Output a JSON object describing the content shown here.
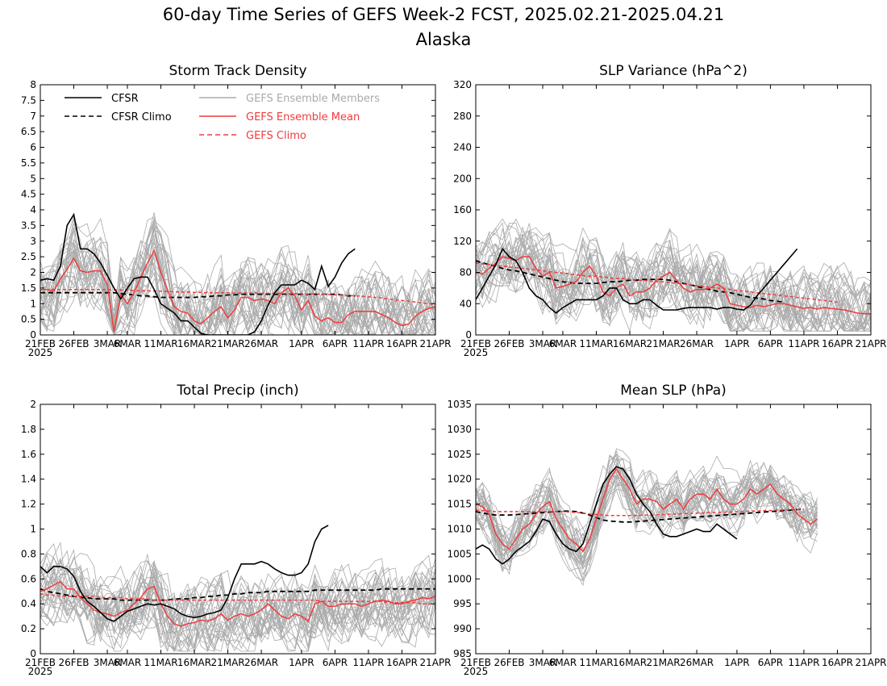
{
  "title": "60-day Time Series of GEFS Week-2 FCST, 2025.02.21-2025.04.21",
  "subtitle": "Alaska",
  "legend": [
    {
      "label": "CFSR",
      "color": "#000000",
      "dash": false
    },
    {
      "label": "CFSR Climo",
      "color": "#000000",
      "dash": true
    },
    {
      "label": "GEFS Ensemble Members",
      "color": "#aaaaaa",
      "dash": false
    },
    {
      "label": "GEFS Ensemble Mean",
      "color": "#f03c3c",
      "dash": false
    },
    {
      "label": "GEFS Climo",
      "color": "#f03c3c",
      "dash": true
    }
  ],
  "x_ticks": [
    "21FEB",
    "26FEB",
    "3MAR",
    "6MAR",
    "11MAR",
    "16MAR",
    "21MAR",
    "26MAR",
    "1APR",
    "6APR",
    "11APR",
    "16APR",
    "21APR"
  ],
  "x_tick_dates": [
    "2025-02-21",
    "2025-02-26",
    "2025-03-03",
    "2025-03-06",
    "2025-03-11",
    "2025-03-16",
    "2025-03-21",
    "2025-03-26",
    "2025-04-01",
    "2025-04-06",
    "2025-04-11",
    "2025-04-16",
    "2025-04-21"
  ],
  "x_year_label": "2025",
  "chart_data": [
    {
      "type": "line",
      "title": "Storm Track Density",
      "ylim": [
        0,
        8
      ],
      "yticks": [
        "0",
        "0.5",
        "1",
        "1.5",
        "2",
        "2.5",
        "3",
        "3.5",
        "4",
        "4.5",
        "5",
        "5.5",
        "6",
        "6.5",
        "7",
        "7.5",
        "8"
      ],
      "x_range": [
        "2025-02-21",
        "2025-04-21"
      ],
      "series": [
        {
          "name": "CFSR",
          "start": "2025-02-21",
          "values": [
            1.75,
            1.8,
            1.75,
            2.2,
            3.5,
            3.85,
            2.75,
            2.75,
            2.6,
            2.3,
            1.9,
            1.5,
            1.15,
            1.5,
            1.8,
            1.85,
            1.85,
            1.45,
            1.0,
            0.85,
            0.7,
            0.45,
            0.45,
            0.25,
            0.05,
            0.0,
            0.0,
            0.0,
            0.0,
            0.0,
            0.0,
            0.0,
            0.1,
            0.45,
            0.95,
            1.35,
            1.6,
            1.6,
            1.6,
            1.75,
            1.65,
            1.45,
            2.2,
            1.55,
            1.85,
            2.3,
            2.6,
            2.75
          ]
        },
        {
          "name": "CFSR Climo",
          "start": "2025-02-21",
          "values": [
            1.35,
            1.35,
            1.35,
            1.35,
            1.35,
            1.35,
            1.35,
            1.35,
            1.35,
            1.35,
            1.35,
            1.35,
            1.32,
            1.3,
            1.28,
            1.25,
            1.25,
            1.22,
            1.2,
            1.2,
            1.2,
            1.2,
            1.2,
            1.2,
            1.22,
            1.22,
            1.25,
            1.25,
            1.28,
            1.28,
            1.3,
            1.3,
            1.3,
            1.3,
            1.3,
            1.3,
            1.3,
            1.3,
            1.3,
            1.3,
            1.3,
            1.3,
            1.3,
            1.3,
            1.3,
            1.28,
            1.25,
            1.25
          ]
        },
        {
          "name": "GEFS Ensemble Mean",
          "start": "2025-02-21",
          "values": [
            1.45,
            1.45,
            1.4,
            1.8,
            2.1,
            2.45,
            2.05,
            2.0,
            2.05,
            2.05,
            1.6,
            0.1,
            1.3,
            1.0,
            1.35,
            1.85,
            2.3,
            2.7,
            2.0,
            1.45,
            0.9,
            0.75,
            0.7,
            0.45,
            0.35,
            0.55,
            0.75,
            0.9,
            0.55,
            0.8,
            1.2,
            1.2,
            1.1,
            1.15,
            1.1,
            1.0,
            1.35,
            1.5,
            1.25,
            0.8,
            1.1,
            0.6,
            0.45,
            0.55,
            0.4,
            0.4,
            0.65,
            0.75,
            0.75,
            0.75,
            0.75,
            0.65,
            0.55,
            0.4,
            0.3,
            0.35,
            0.6,
            0.75,
            0.85,
            0.9,
            0.95,
            1.1,
            0.85
          ]
        },
        {
          "name": "GEFS Climo",
          "start": "2025-02-21",
          "values": [
            1.45,
            1.45,
            1.45,
            1.45,
            1.45,
            1.45,
            1.45,
            1.45,
            1.45,
            1.45,
            1.45,
            1.44,
            1.44,
            1.43,
            1.42,
            1.42,
            1.41,
            1.4,
            1.4,
            1.39,
            1.38,
            1.37,
            1.37,
            1.36,
            1.36,
            1.35,
            1.35,
            1.35,
            1.35,
            1.34,
            1.34,
            1.34,
            1.34,
            1.33,
            1.33,
            1.33,
            1.33,
            1.32,
            1.32,
            1.32,
            1.31,
            1.31,
            1.3,
            1.29,
            1.28,
            1.27,
            1.26,
            1.25,
            1.24,
            1.22,
            1.2,
            1.18,
            1.15,
            1.12,
            1.1,
            1.08,
            1.05,
            1.02,
            1.0,
            0.98,
            0.95
          ]
        }
      ],
      "ensemble": {
        "members": 30,
        "spread": 1.1,
        "min": 0
      }
    },
    {
      "type": "line",
      "title": "SLP Variance (hPa^2)",
      "ylim": [
        0,
        320
      ],
      "yticks": [
        "0",
        "40",
        "80",
        "120",
        "160",
        "200",
        "240",
        "280",
        "320"
      ],
      "x_range": [
        "2025-02-21",
        "2025-04-21"
      ],
      "series": [
        {
          "name": "CFSR",
          "start": "2025-02-21",
          "values": [
            45,
            60,
            75,
            90,
            110,
            100,
            95,
            80,
            60,
            50,
            45,
            35,
            28,
            35,
            40,
            45,
            45,
            45,
            45,
            50,
            60,
            60,
            45,
            40,
            40,
            45,
            45,
            38,
            32,
            32,
            32,
            34,
            35,
            35,
            35,
            35,
            33,
            35,
            35,
            33,
            32,
            38,
            50,
            60,
            70,
            80,
            90,
            100,
            110
          ]
        },
        {
          "name": "CFSR Climo",
          "start": "2025-02-21",
          "values": [
            95,
            92,
            90,
            88,
            85,
            83,
            82,
            80,
            78,
            76,
            74,
            72,
            70,
            68,
            67,
            66,
            66,
            66,
            66,
            67,
            68,
            68,
            69,
            70,
            70,
            71,
            71,
            71,
            71,
            70,
            68,
            66,
            64,
            62,
            60,
            58,
            56,
            55,
            54,
            52,
            50,
            48,
            47,
            46,
            44,
            43,
            42
          ]
        },
        {
          "name": "GEFS Ensemble Mean",
          "start": "2025-02-21",
          "values": [
            80,
            78,
            85,
            92,
            100,
            98,
            95,
            100,
            100,
            85,
            75,
            80,
            60,
            62,
            65,
            68,
            80,
            88,
            75,
            55,
            50,
            60,
            65,
            50,
            55,
            55,
            60,
            70,
            75,
            80,
            70,
            60,
            55,
            58,
            58,
            60,
            65,
            60,
            40,
            38,
            36,
            35,
            38,
            36,
            38,
            40,
            40,
            38,
            36,
            34,
            35,
            33,
            35,
            34,
            33,
            32,
            30,
            28,
            27,
            27
          ]
        },
        {
          "name": "GEFS Climo",
          "start": "2025-02-21",
          "values": [
            92,
            91,
            90,
            89,
            88,
            87,
            86,
            85,
            84,
            83,
            82,
            81,
            80,
            79,
            78,
            77,
            76,
            75,
            75,
            74,
            73,
            72,
            72,
            71,
            70,
            70,
            69,
            68,
            68,
            67,
            66,
            65,
            64,
            63,
            62,
            61,
            60,
            59,
            58,
            57,
            56,
            55,
            54,
            53,
            52,
            51,
            50,
            49,
            48,
            47,
            46,
            45,
            44,
            43,
            42
          ]
        }
      ],
      "ensemble": {
        "members": 30,
        "spread": 40,
        "min": 5
      }
    },
    {
      "type": "line",
      "title": "Total Precip (inch)",
      "ylim": [
        0,
        2
      ],
      "yticks": [
        "0",
        "0.2",
        "0.4",
        "0.6",
        "0.8",
        "1",
        "1.2",
        "1.4",
        "1.6",
        "1.8",
        "2"
      ],
      "x_range": [
        "2025-02-21",
        "2025-04-21"
      ],
      "series": [
        {
          "name": "CFSR",
          "start": "2025-02-21",
          "values": [
            0.7,
            0.65,
            0.7,
            0.7,
            0.68,
            0.62,
            0.5,
            0.42,
            0.38,
            0.33,
            0.28,
            0.26,
            0.3,
            0.34,
            0.36,
            0.38,
            0.4,
            0.39,
            0.4,
            0.38,
            0.36,
            0.32,
            0.3,
            0.29,
            0.3,
            0.32,
            0.33,
            0.35,
            0.45,
            0.6,
            0.72,
            0.72,
            0.72,
            0.74,
            0.72,
            0.68,
            0.65,
            0.63,
            0.63,
            0.65,
            0.72,
            0.9,
            1.0,
            1.03
          ]
        },
        {
          "name": "CFSR Climo",
          "start": "2025-02-21",
          "values": [
            0.52,
            0.5,
            0.49,
            0.48,
            0.47,
            0.46,
            0.45,
            0.45,
            0.44,
            0.44,
            0.44,
            0.44,
            0.43,
            0.43,
            0.43,
            0.43,
            0.43,
            0.43,
            0.43,
            0.43,
            0.44,
            0.44,
            0.44,
            0.45,
            0.45,
            0.46,
            0.46,
            0.47,
            0.47,
            0.48,
            0.48,
            0.49,
            0.49,
            0.49,
            0.5,
            0.5,
            0.5,
            0.5,
            0.5,
            0.5,
            0.5,
            0.51,
            0.51,
            0.51,
            0.51,
            0.51,
            0.51,
            0.51,
            0.51,
            0.51,
            0.51,
            0.52,
            0.52,
            0.52,
            0.52,
            0.52,
            0.52,
            0.52,
            0.52,
            0.52
          ]
        },
        {
          "name": "GEFS Ensemble Mean",
          "start": "2025-02-21",
          "values": [
            0.5,
            0.52,
            0.55,
            0.58,
            0.52,
            0.52,
            0.45,
            0.4,
            0.35,
            0.33,
            0.32,
            0.3,
            0.33,
            0.35,
            0.4,
            0.45,
            0.52,
            0.54,
            0.4,
            0.3,
            0.24,
            0.22,
            0.24,
            0.25,
            0.27,
            0.26,
            0.28,
            0.32,
            0.27,
            0.3,
            0.32,
            0.3,
            0.32,
            0.35,
            0.4,
            0.35,
            0.3,
            0.28,
            0.32,
            0.3,
            0.26,
            0.4,
            0.42,
            0.38,
            0.38,
            0.4,
            0.4,
            0.4,
            0.38,
            0.4,
            0.42,
            0.43,
            0.42,
            0.4,
            0.4,
            0.42,
            0.43,
            0.45,
            0.44,
            0.46
          ]
        },
        {
          "name": "GEFS Climo",
          "start": "2025-02-21",
          "values": [
            0.48,
            0.47,
            0.47,
            0.46,
            0.46,
            0.46,
            0.46,
            0.46,
            0.46,
            0.45,
            0.45,
            0.45,
            0.45,
            0.44,
            0.44,
            0.44,
            0.44,
            0.43,
            0.43,
            0.43,
            0.43,
            0.43,
            0.43,
            0.43,
            0.43,
            0.43,
            0.43,
            0.43,
            0.43,
            0.43,
            0.43,
            0.43,
            0.43,
            0.43,
            0.43,
            0.43,
            0.43,
            0.43,
            0.43,
            0.43,
            0.43,
            0.43,
            0.42,
            0.42,
            0.42,
            0.42,
            0.42,
            0.42,
            0.42,
            0.42,
            0.42,
            0.42,
            0.41,
            0.41,
            0.41,
            0.41,
            0.41,
            0.4,
            0.4,
            0.4
          ]
        }
      ],
      "ensemble": {
        "members": 30,
        "spread": 0.25,
        "min": 0.02
      }
    },
    {
      "type": "line",
      "title": "Mean SLP (hPa)",
      "ylim": [
        985,
        1035
      ],
      "yticks": [
        "985",
        "990",
        "995",
        "1000",
        "1005",
        "1010",
        "1015",
        "1020",
        "1025",
        "1030",
        "1035"
      ],
      "x_range": [
        "2025-02-21",
        "2025-04-21"
      ],
      "series": [
        {
          "name": "CFSR",
          "start": "2025-02-21",
          "values": [
            1006,
            1006.8,
            1006,
            1004,
            1003,
            1004,
            1005.5,
            1006.5,
            1007.5,
            1009.5,
            1012,
            1011.5,
            1009,
            1007,
            1006,
            1005.5,
            1007,
            1011,
            1015,
            1019,
            1021,
            1022.5,
            1022,
            1020,
            1017,
            1015,
            1013.5,
            1011,
            1009,
            1008.5,
            1008.5,
            1009,
            1009.5,
            1010,
            1009.5,
            1009.5,
            1011,
            1010,
            1009,
            1008
          ]
        },
        {
          "name": "CFSR Climo",
          "start": "2025-02-21",
          "values": [
            1013.5,
            1013.2,
            1013,
            1012.8,
            1012.8,
            1012.8,
            1012.9,
            1013,
            1013.1,
            1013.2,
            1013.3,
            1013.4,
            1013.5,
            1013.6,
            1013.6,
            1013.5,
            1013.2,
            1012.8,
            1012.3,
            1011.8,
            1011.6,
            1011.5,
            1011.4,
            1011.4,
            1011.5,
            1011.6,
            1011.7,
            1011.8,
            1011.9,
            1012,
            1012.1,
            1012.2,
            1012.3,
            1012.4,
            1012.5,
            1012.6,
            1012.7,
            1012.8,
            1012.9,
            1013,
            1013.1,
            1013.2,
            1013.3,
            1013.4,
            1013.5,
            1013.6,
            1013.7,
            1013.8,
            1013.9,
            1014
          ]
        },
        {
          "name": "GEFS Ensemble Mean",
          "start": "2025-02-21",
          "values": [
            1015,
            1014.5,
            1013,
            1009,
            1007,
            1006,
            1008,
            1010,
            1011,
            1013,
            1014.5,
            1015.5,
            1012,
            1010,
            1008,
            1007,
            1005.5,
            1008,
            1012,
            1016,
            1020,
            1022,
            1020,
            1018,
            1015,
            1016,
            1016,
            1015.5,
            1014,
            1015,
            1016,
            1014,
            1016,
            1017,
            1017,
            1016,
            1018,
            1016,
            1015,
            1015,
            1016,
            1018,
            1017,
            1018,
            1019,
            1017,
            1016,
            1015,
            1013,
            1012,
            1011,
            1012
          ]
        },
        {
          "name": "GEFS Climo",
          "start": "2025-02-21",
          "values": [
            1013.8,
            1013.7,
            1013.6,
            1013.5,
            1013.5,
            1013.5,
            1013.5,
            1013.5,
            1013.5,
            1013.5,
            1013.5,
            1013.5,
            1013.5,
            1013.5,
            1013.4,
            1013.3,
            1013.2,
            1013,
            1012.9,
            1012.8,
            1012.7,
            1012.7,
            1012.7,
            1012.7,
            1012.7,
            1012.8,
            1012.8,
            1012.9,
            1012.9,
            1013,
            1013,
            1013.1,
            1013.1,
            1013.2,
            1013.2,
            1013.3,
            1013.3,
            1013.4,
            1013.4,
            1013.5,
            1013.5,
            1013.6,
            1013.6,
            1013.7,
            1013.7,
            1013.8,
            1013.8,
            1013.9,
            1013.9,
            1014
          ]
        }
      ],
      "ensemble": {
        "members": 30,
        "spread": 4.5,
        "min": 985
      }
    }
  ]
}
